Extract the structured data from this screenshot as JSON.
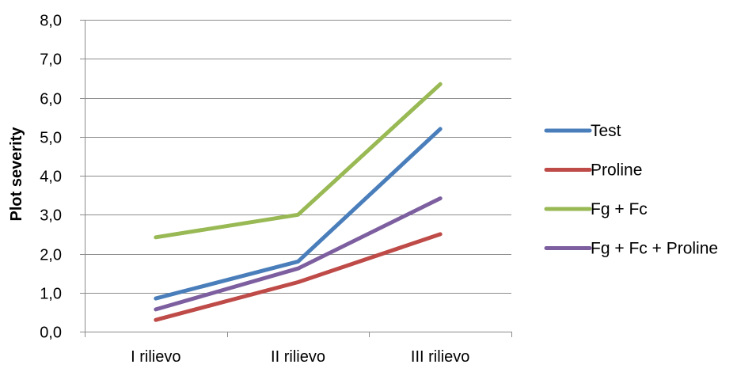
{
  "chart_data": {
    "type": "line",
    "categories": [
      "I rilievo",
      "II rilievo",
      "III rilievo"
    ],
    "ylabel": "Plot severity",
    "xlabel": "",
    "ylim": [
      0,
      8
    ],
    "ytick_labels": [
      "0,0",
      "1,0",
      "2,0",
      "3,0",
      "4,0",
      "5,0",
      "6,0",
      "7,0",
      "8,0"
    ],
    "grid": "horizontal",
    "legend_position": "right",
    "series": [
      {
        "name": "Test",
        "values": [
          0.85,
          1.8,
          5.2
        ],
        "color": "#4a7ebb"
      },
      {
        "name": "Proline",
        "values": [
          0.3,
          1.27,
          2.5
        ],
        "color": "#be4b48"
      },
      {
        "name": "Fg + Fc",
        "values": [
          2.42,
          3.0,
          6.35
        ],
        "color": "#98b954"
      },
      {
        "name": "Fg + Fc + Proline",
        "values": [
          0.57,
          1.62,
          3.42
        ],
        "color": "#7d5fa0"
      }
    ]
  }
}
